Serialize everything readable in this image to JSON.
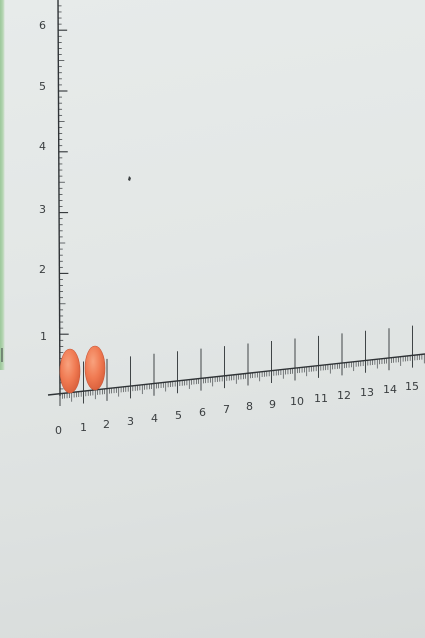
{
  "vertical_ruler": {
    "labels": [
      "1",
      "2",
      "3",
      "4",
      "5",
      "6"
    ]
  },
  "horizontal_ruler": {
    "labels": [
      "0",
      "1",
      "2",
      "3",
      "4",
      "5",
      "6",
      "7",
      "8",
      "9",
      "10",
      "11",
      "12",
      "13",
      "14",
      "15"
    ]
  },
  "tablets": {
    "count": 2,
    "color": "#f07a52"
  },
  "colors": {
    "paper": "#e3e7e6",
    "ink": "#2f3336",
    "green_edge": "#9bc79a"
  }
}
